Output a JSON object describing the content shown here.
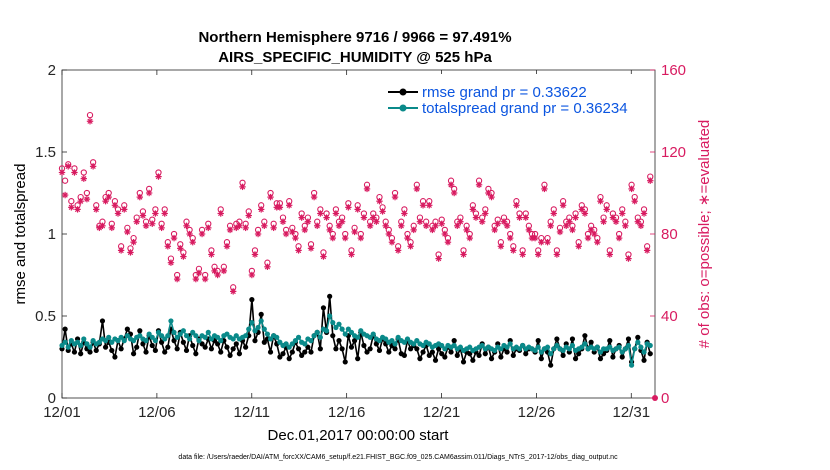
{
  "chart_data": {
    "type": "line",
    "title_line1": "Northern Hemisphere 9716 / 9966 = 97.491%",
    "title_line2": "AIRS_SPECIFIC_HUMIDITY @ 525 hPa",
    "xlabel": "Dec.01,2017 00:00:00 start",
    "ylabel": "rmse and totalspread",
    "ylabel_right": "# of obs: o=possible; ∗=evaluated",
    "footnote": "data file: /Users/raeder/DAI/ATM_forcXX/CAM6_setup/f.e21.FHIST_BGC.f09_025.CAM6assim.011/Diags_NTrS_2017-12/obs_diag_output.nc",
    "x_range": [
      0,
      31.25
    ],
    "ylim": [
      0,
      2
    ],
    "ylim_right": [
      0,
      160
    ],
    "x_ticks": [
      {
        "value": 0,
        "label": "12/01"
      },
      {
        "value": 5,
        "label": "12/06"
      },
      {
        "value": 10,
        "label": "12/11"
      },
      {
        "value": 15,
        "label": "12/16"
      },
      {
        "value": 20,
        "label": "12/21"
      },
      {
        "value": 25,
        "label": "12/26"
      },
      {
        "value": 30,
        "label": "12/31"
      }
    ],
    "y_ticks": [
      "0",
      "0.5",
      "1",
      "1.5",
      "2"
    ],
    "y_ticks_right": [
      "0",
      "40",
      "80",
      "120",
      "160"
    ],
    "legend": [
      {
        "label": "rmse grand pr = 0.33622",
        "color": "#000000",
        "series": "rmse"
      },
      {
        "label": "totalspread grand pr = 0.36234",
        "color": "#0a8a8a",
        "series": "totalspread"
      }
    ],
    "series": [
      {
        "name": "rmse",
        "color": "#000000",
        "axis": "left",
        "values": [
          0.3,
          0.42,
          0.29,
          0.33,
          0.28,
          0.36,
          0.27,
          0.34,
          0.3,
          0.28,
          0.34,
          0.29,
          0.33,
          0.47,
          0.31,
          0.34,
          0.29,
          0.25,
          0.35,
          0.3,
          0.36,
          0.42,
          0.39,
          0.27,
          0.31,
          0.41,
          0.33,
          0.28,
          0.38,
          0.32,
          0.29,
          0.41,
          0.34,
          0.28,
          0.31,
          0.42,
          0.35,
          0.3,
          0.4,
          0.34,
          0.29,
          0.38,
          0.32,
          0.27,
          0.36,
          0.33,
          0.31,
          0.36,
          0.3,
          0.35,
          0.33,
          0.28,
          0.35,
          0.31,
          0.26,
          0.3,
          0.33,
          0.27,
          0.35,
          0.31,
          0.38,
          0.6,
          0.35,
          0.4,
          0.51,
          0.34,
          0.36,
          0.28,
          0.38,
          0.33,
          0.25,
          0.27,
          0.31,
          0.24,
          0.28,
          0.34,
          0.3,
          0.26,
          0.28,
          0.31,
          0.28,
          0.38,
          0.4,
          0.3,
          0.55,
          0.4,
          0.62,
          0.38,
          0.3,
          0.35,
          0.3,
          0.22,
          0.38,
          0.31,
          0.35,
          0.24,
          0.4,
          0.32,
          0.28,
          0.3,
          0.38,
          0.33,
          0.29,
          0.36,
          0.33,
          0.28,
          0.32,
          0.3,
          0.36,
          0.27,
          0.26,
          0.35,
          0.3,
          0.32,
          0.3,
          0.24,
          0.28,
          0.32,
          0.26,
          0.28,
          0.23,
          0.3,
          0.27,
          0.25,
          0.31,
          0.28,
          0.35,
          0.26,
          0.3,
          0.22,
          0.28,
          0.27,
          0.23,
          0.28,
          0.26,
          0.33,
          0.27,
          0.31,
          0.24,
          0.28,
          0.33,
          0.25,
          0.3,
          0.28,
          0.35,
          0.26,
          0.3,
          0.29,
          0.32,
          0.27,
          0.3,
          0.3,
          0.28,
          0.35,
          0.24,
          0.3,
          0.28,
          0.2,
          0.3,
          0.36,
          0.3,
          0.26,
          0.33,
          0.28,
          0.36,
          0.24,
          0.27,
          0.3,
          0.38,
          0.3,
          0.34,
          0.28,
          0.31,
          0.24,
          0.27,
          0.29,
          0.35,
          0.25,
          0.3,
          0.32,
          0.25,
          0.3,
          0.36,
          0.22,
          0.3,
          0.37,
          0.29,
          0.23,
          0.34,
          0.27
        ]
      },
      {
        "name": "totalspread",
        "color": "#0a8a8a",
        "axis": "left",
        "values": [
          0.32,
          0.34,
          0.31,
          0.35,
          0.33,
          0.34,
          0.32,
          0.36,
          0.33,
          0.31,
          0.35,
          0.33,
          0.34,
          0.36,
          0.35,
          0.37,
          0.34,
          0.36,
          0.35,
          0.37,
          0.35,
          0.38,
          0.36,
          0.35,
          0.37,
          0.38,
          0.36,
          0.35,
          0.39,
          0.37,
          0.35,
          0.4,
          0.38,
          0.36,
          0.38,
          0.47,
          0.4,
          0.37,
          0.39,
          0.41,
          0.38,
          0.36,
          0.4,
          0.38,
          0.35,
          0.38,
          0.37,
          0.4,
          0.36,
          0.38,
          0.37,
          0.35,
          0.38,
          0.39,
          0.37,
          0.36,
          0.38,
          0.36,
          0.37,
          0.38,
          0.42,
          0.46,
          0.41,
          0.43,
          0.47,
          0.42,
          0.39,
          0.36,
          0.38,
          0.37,
          0.34,
          0.32,
          0.33,
          0.31,
          0.33,
          0.35,
          0.37,
          0.34,
          0.33,
          0.36,
          0.35,
          0.38,
          0.4,
          0.37,
          0.42,
          0.41,
          0.5,
          0.46,
          0.43,
          0.45,
          0.42,
          0.39,
          0.42,
          0.4,
          0.38,
          0.37,
          0.41,
          0.39,
          0.38,
          0.37,
          0.39,
          0.36,
          0.35,
          0.37,
          0.36,
          0.34,
          0.35,
          0.33,
          0.37,
          0.35,
          0.34,
          0.36,
          0.34,
          0.33,
          0.35,
          0.33,
          0.32,
          0.34,
          0.33,
          0.31,
          0.32,
          0.33,
          0.32,
          0.3,
          0.32,
          0.31,
          0.32,
          0.3,
          0.31,
          0.29,
          0.3,
          0.31,
          0.29,
          0.3,
          0.31,
          0.32,
          0.3,
          0.31,
          0.3,
          0.29,
          0.31,
          0.3,
          0.32,
          0.31,
          0.33,
          0.3,
          0.31,
          0.3,
          0.32,
          0.3,
          0.31,
          0.3,
          0.29,
          0.31,
          0.28,
          0.3,
          0.31,
          0.27,
          0.3,
          0.32,
          0.3,
          0.29,
          0.31,
          0.3,
          0.32,
          0.29,
          0.3,
          0.31,
          0.33,
          0.3,
          0.31,
          0.3,
          0.31,
          0.28,
          0.3,
          0.3,
          0.31,
          0.29,
          0.3,
          0.31,
          0.28,
          0.3,
          0.32,
          0.2,
          0.3,
          0.34,
          0.31,
          0.28,
          0.33,
          0.32
        ]
      },
      {
        "name": "possible",
        "color": "#d81b60",
        "axis": "right",
        "marker": "circle",
        "values": [
          112,
          106,
          114,
          96,
          112,
          94,
          98,
          110,
          100,
          138,
          115,
          94,
          84,
          86,
          98,
          100,
          85,
          96,
          92,
          74,
          94,
          83,
          73,
          78,
          88,
          100,
          91,
          86,
          102,
          87,
          92,
          110,
          85,
          92,
          76,
          68,
          80,
          60,
          75,
          71,
          86,
          82,
          78,
          60,
          63,
          82,
          60,
          85,
          72,
          64,
          62,
          92,
          64,
          76,
          84,
          54,
          85,
          86,
          105,
          85,
          91,
          62,
          72,
          82,
          94,
          86,
          66,
          100,
          85,
          95,
          95,
          88,
          82,
          96,
          83,
          80,
          74,
          90,
          84,
          88,
          75,
          100,
          86,
          92,
          71,
          90,
          84,
          80,
          92,
          86,
          88,
          80,
          95,
          72,
          83,
          94,
          80,
          90,
          104,
          86,
          90,
          88,
          98,
          93,
          86,
          82,
          78,
          100,
          74,
          86,
          92,
          80,
          76,
          84,
          104,
          88,
          96,
          86,
          96,
          84,
          86,
          70,
          87,
          82,
          78,
          106,
          102,
          86,
          88,
          72,
          84,
          80,
          94,
          90,
          106,
          88,
          92,
          102,
          100,
          84,
          87,
          76,
          88,
          86,
          80,
          74,
          96,
          90,
          72,
          90,
          84,
          80,
          80,
          72,
          78,
          104,
          78,
          86,
          92,
          72,
          83,
          96,
          86,
          88,
          84,
          90,
          76,
          94,
          92,
          80,
          84,
          82,
          78,
          98,
          88,
          94,
          72,
          90,
          88,
          80,
          92,
          86,
          70,
          104,
          98,
          88,
          86,
          92,
          74,
          108
        ]
      },
      {
        "name": "evaluated",
        "color": "#d81b60",
        "axis": "right",
        "marker": "asterisk",
        "values": [
          110,
          99,
          113,
          93,
          110,
          92,
          96,
          107,
          97,
          135,
          113,
          92,
          83,
          84,
          96,
          98,
          83,
          94,
          90,
          72,
          92,
          81,
          71,
          76,
          86,
          98,
          89,
          84,
          100,
          85,
          90,
          108,
          83,
          90,
          74,
          66,
          78,
          58,
          73,
          69,
          84,
          80,
          76,
          58,
          61,
          80,
          58,
          83,
          70,
          62,
          60,
          90,
          62,
          74,
          82,
          52,
          83,
          84,
          103,
          83,
          89,
          60,
          70,
          80,
          92,
          84,
          64,
          98,
          83,
          93,
          93,
          86,
          80,
          94,
          81,
          78,
          72,
          88,
          82,
          86,
          73,
          98,
          84,
          90,
          69,
          88,
          82,
          78,
          90,
          84,
          86,
          78,
          93,
          70,
          81,
          92,
          78,
          88,
          102,
          84,
          88,
          86,
          96,
          91,
          84,
          80,
          76,
          98,
          72,
          84,
          90,
          78,
          74,
          82,
          102,
          86,
          94,
          84,
          94,
          82,
          84,
          68,
          85,
          80,
          76,
          104,
          100,
          84,
          86,
          70,
          82,
          78,
          92,
          88,
          104,
          86,
          90,
          100,
          98,
          82,
          85,
          74,
          86,
          84,
          78,
          72,
          94,
          88,
          70,
          88,
          82,
          78,
          78,
          70,
          76,
          102,
          76,
          84,
          90,
          70,
          81,
          94,
          84,
          86,
          82,
          88,
          74,
          92,
          90,
          78,
          82,
          80,
          76,
          96,
          86,
          92,
          70,
          88,
          86,
          78,
          90,
          84,
          68,
          102,
          96,
          86,
          84,
          90,
          72,
          106
        ]
      }
    ]
  }
}
